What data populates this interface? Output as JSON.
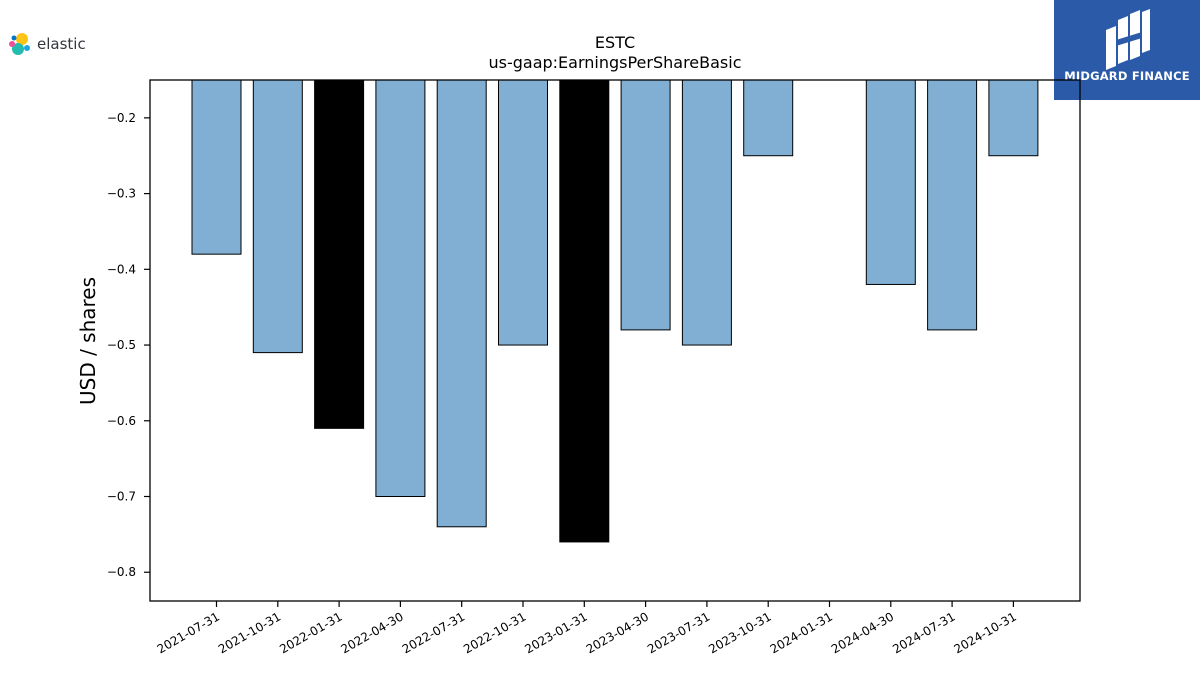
{
  "logos": {
    "elastic": "elastic",
    "midgard": "MIDGARD FINANCE"
  },
  "colors": {
    "bar_default": "#80afd3",
    "bar_highlight": "#000000",
    "logo_bg": "#2b5aa8"
  },
  "chart_data": {
    "type": "bar",
    "title": "ESTC",
    "subtitle": "us-gaap:EarningsPerShareBasic",
    "xlabel": "",
    "ylabel": "USD / shares",
    "categories": [
      "2021-07-31",
      "2021-10-31",
      "2022-01-31",
      "2022-04-30",
      "2022-07-31",
      "2022-10-31",
      "2023-01-31",
      "2023-04-30",
      "2023-07-31",
      "2023-10-31",
      "2024-01-31",
      "2024-04-30",
      "2024-07-31",
      "2024-10-31"
    ],
    "values": [
      -0.38,
      -0.51,
      -0.61,
      -0.7,
      -0.74,
      -0.5,
      -0.76,
      -0.48,
      -0.5,
      -0.25,
      null,
      -0.42,
      -0.48,
      -0.25
    ],
    "highlight": [
      false,
      false,
      true,
      false,
      false,
      false,
      true,
      false,
      false,
      false,
      false,
      false,
      false,
      false
    ],
    "ylim": [
      -0.838,
      -0.15
    ],
    "yticks": [
      -0.2,
      -0.3,
      -0.4,
      -0.5,
      -0.6,
      -0.7,
      -0.8
    ],
    "ytick_labels": [
      "−0.2",
      "−0.3",
      "−0.4",
      "−0.5",
      "−0.6",
      "−0.7",
      "−0.8"
    ],
    "grid": false,
    "legend": "none"
  }
}
